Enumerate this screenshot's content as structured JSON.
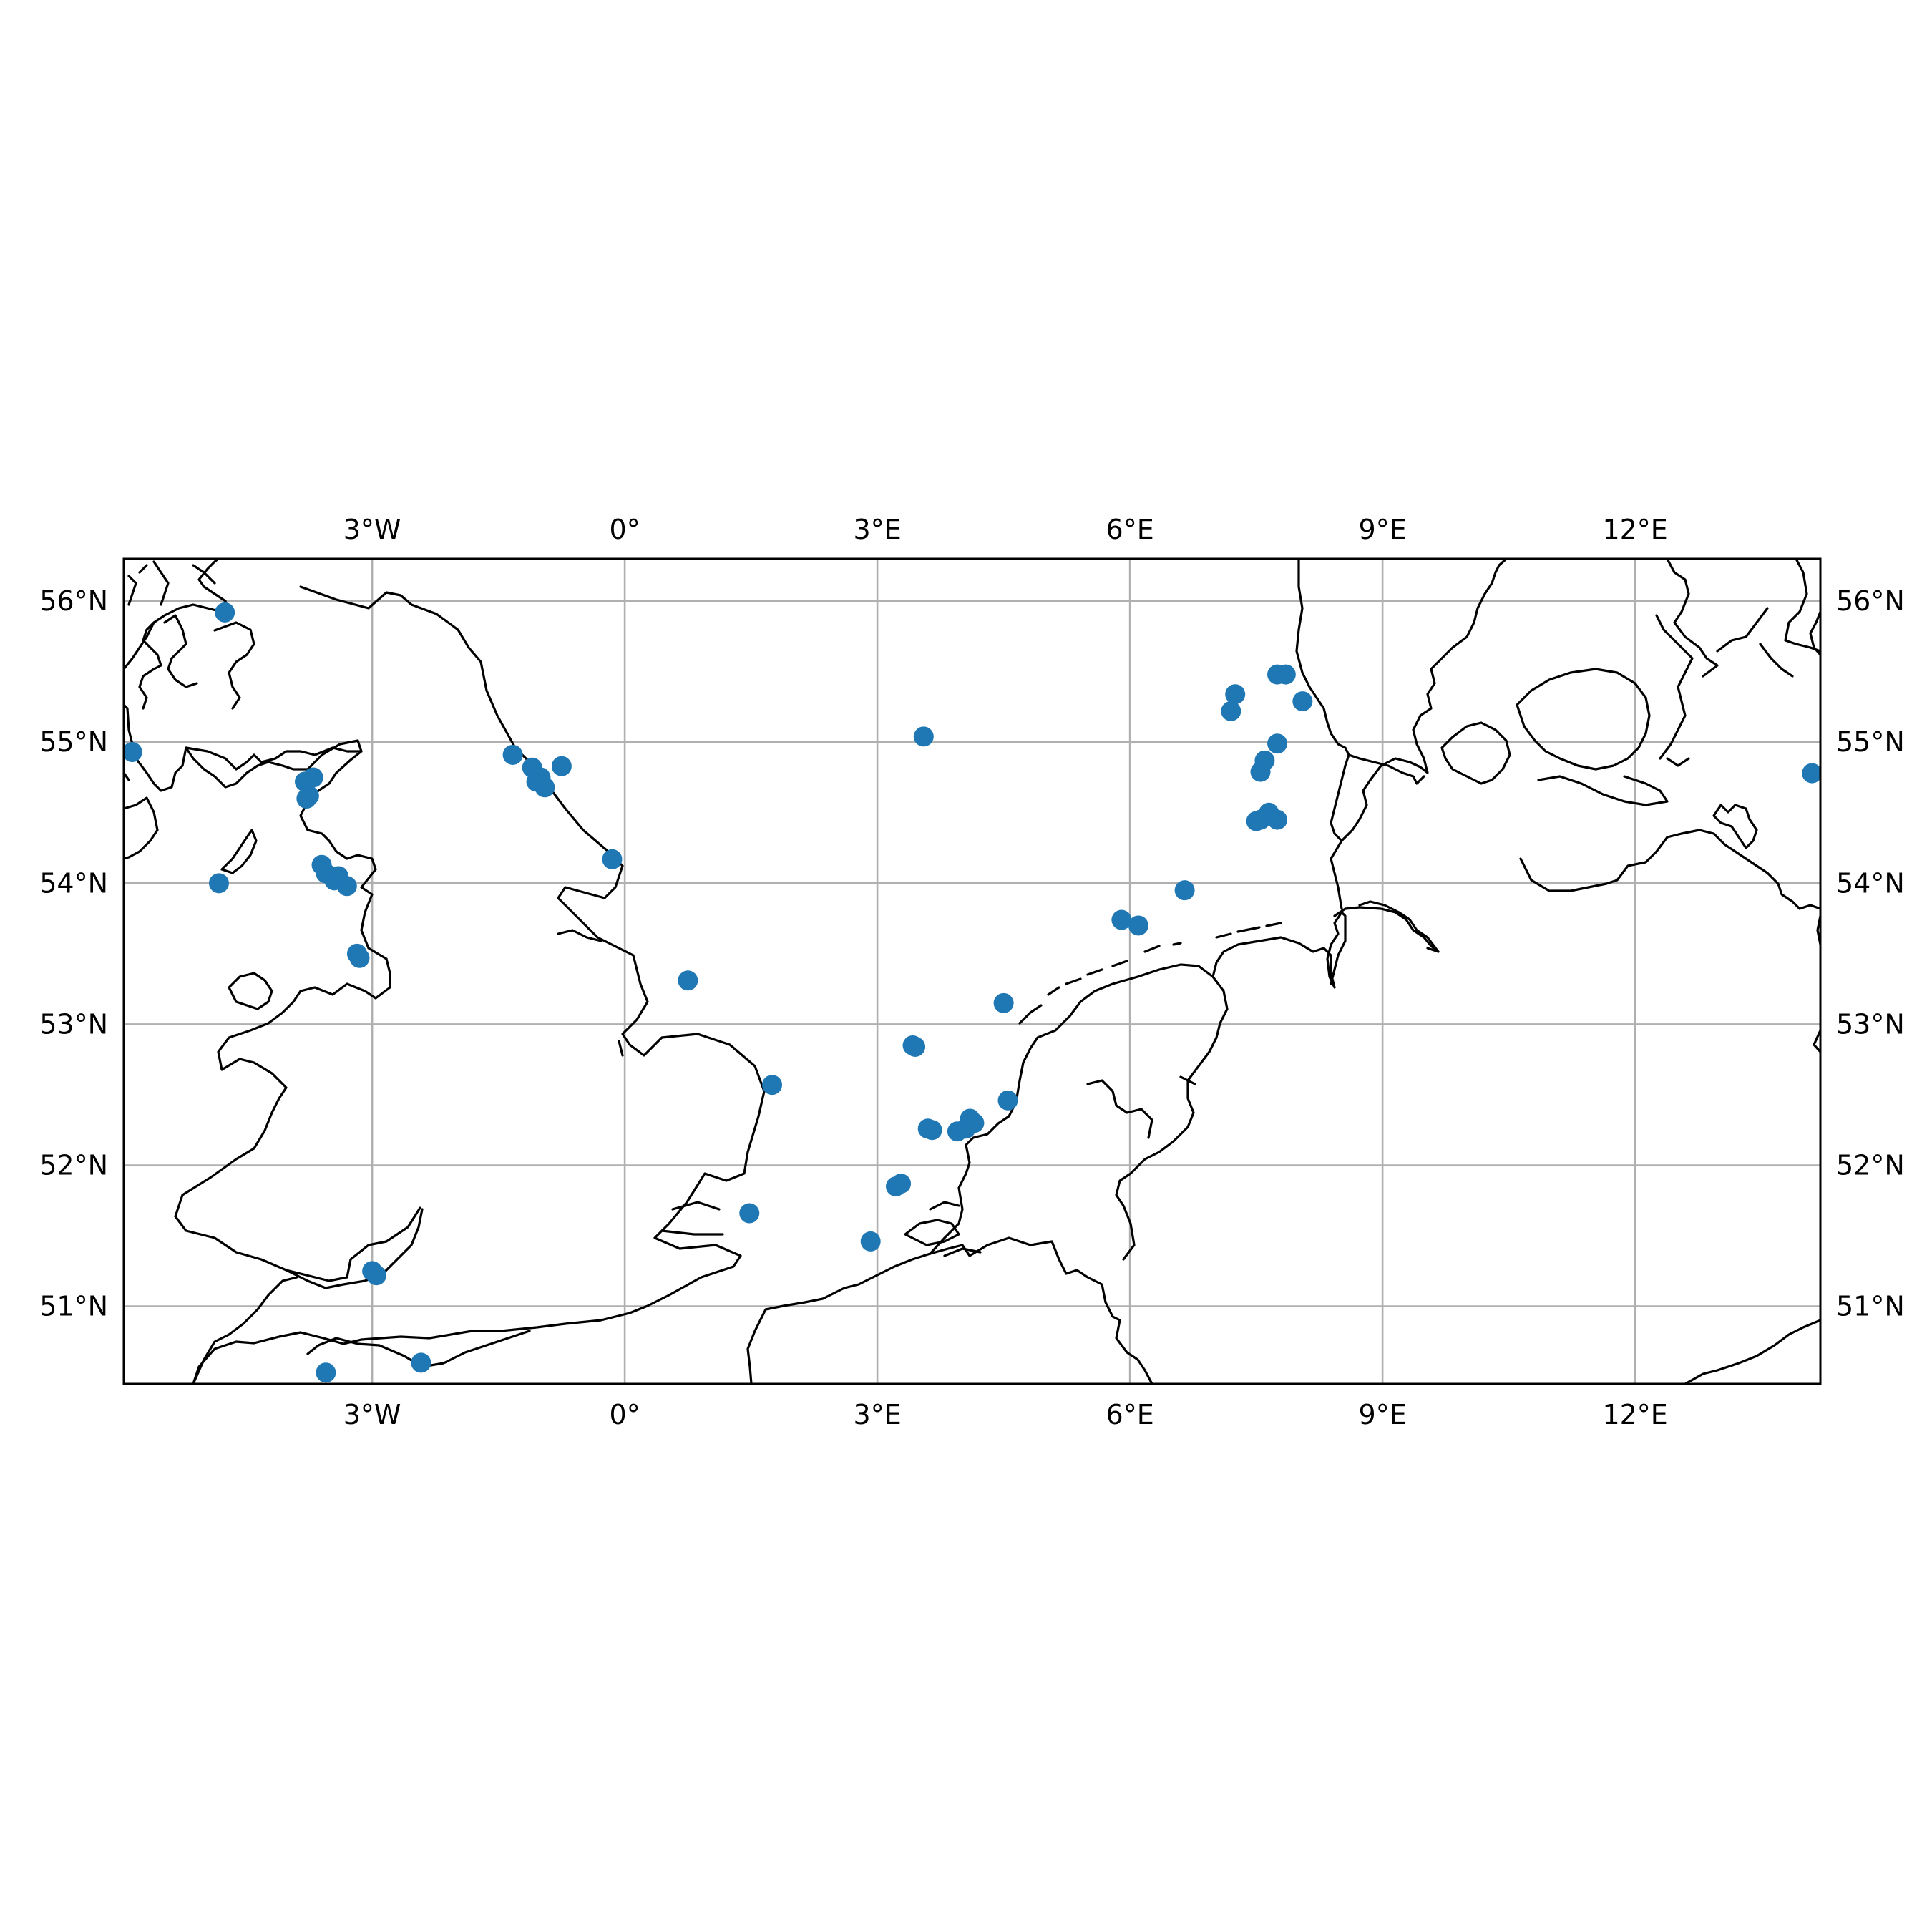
{
  "map": {
    "extent": {
      "lon_min": -5.95,
      "lon_max": 14.2,
      "lat_min": 50.45,
      "lat_max": 56.3
    },
    "grid": true,
    "lon_ticks": [
      {
        "value": -3,
        "label": "3°W"
      },
      {
        "value": 0,
        "label": "0°"
      },
      {
        "value": 3,
        "label": "3°E"
      },
      {
        "value": 6,
        "label": "6°E"
      },
      {
        "value": 9,
        "label": "9°E"
      },
      {
        "value": 12,
        "label": "12°E"
      }
    ],
    "lat_ticks": [
      {
        "value": 56,
        "label": "56°N"
      },
      {
        "value": 55,
        "label": "55°N"
      },
      {
        "value": 54,
        "label": "54°N"
      },
      {
        "value": 53,
        "label": "53°N"
      },
      {
        "value": 52,
        "label": "52°N"
      },
      {
        "value": 51,
        "label": "51°N"
      }
    ],
    "point_color": "#1f77b4",
    "coastline_color": "#000000",
    "grid_color": "#b0b0b0"
  },
  "chart_data": {
    "type": "scatter",
    "x": [
      -5.85,
      -4.75,
      -4.82,
      -3.8,
      -3.75,
      -3.7,
      -3.78,
      -3.6,
      -3.55,
      -3.45,
      -3.4,
      -3.3,
      -3.18,
      -3.15,
      -3.0,
      -2.95,
      -3.55,
      -2.42,
      -1.33,
      -1.1,
      -1.05,
      -0.95,
      -1.0,
      -0.75,
      -0.15,
      0.75,
      1.75,
      1.48,
      2.92,
      3.22,
      3.28,
      3.42,
      3.45,
      3.55,
      3.6,
      3.65,
      3.95,
      4.05,
      4.1,
      4.15,
      4.55,
      4.5,
      5.9,
      6.1,
      6.65,
      7.2,
      7.25,
      7.75,
      7.85,
      8.05,
      7.75,
      7.6,
      7.55,
      7.5,
      7.65,
      7.55,
      7.75,
      14.1
    ],
    "y": [
      54.93,
      55.92,
      54.0,
      54.72,
      54.62,
      54.75,
      54.6,
      54.13,
      54.07,
      54.02,
      54.05,
      53.98,
      53.5,
      53.47,
      51.25,
      51.22,
      50.53,
      50.6,
      54.91,
      54.82,
      54.72,
      54.68,
      54.75,
      54.83,
      54.17,
      53.31,
      52.57,
      51.66,
      51.46,
      51.85,
      51.87,
      52.85,
      52.84,
      55.04,
      52.26,
      52.25,
      52.24,
      52.26,
      52.33,
      52.3,
      52.46,
      53.15,
      53.74,
      53.7,
      53.95,
      55.22,
      55.34,
      55.48,
      55.48,
      55.29,
      54.99,
      54.87,
      54.79,
      54.44,
      54.5,
      54.45,
      54.45,
      54.78
    ]
  }
}
